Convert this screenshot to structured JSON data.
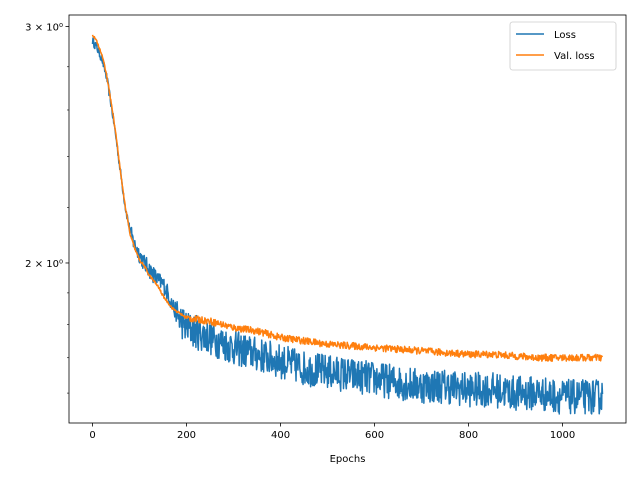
{
  "chart_data": {
    "type": "line",
    "title": "",
    "xlabel": "Epochs",
    "ylabel": "",
    "yscale": "log",
    "xlim": [
      -50,
      1135
    ],
    "ylim": [
      1.52,
      3.06
    ],
    "x_ticks": [
      0,
      200,
      400,
      600,
      800,
      1000
    ],
    "x_tick_labels": [
      "0",
      "200",
      "400",
      "600",
      "800",
      "1000"
    ],
    "y_ticks": [
      2,
      3
    ],
    "y_tick_labels": [
      "2 × 10⁰",
      "3 × 10⁰"
    ],
    "grid": false,
    "legend_position": "top-right",
    "series": [
      {
        "name": "Loss",
        "color": "#1f77b4",
        "noise": "high",
        "x": [
          0,
          10,
          20,
          30,
          40,
          50,
          60,
          70,
          80,
          90,
          100,
          110,
          120,
          130,
          140,
          150,
          160,
          170,
          180,
          190,
          200,
          250,
          300,
          350,
          400,
          450,
          500,
          550,
          600,
          650,
          700,
          750,
          800,
          850,
          900,
          950,
          1000,
          1050,
          1085
        ],
        "values": [
          2.93,
          2.89,
          2.84,
          2.75,
          2.62,
          2.48,
          2.33,
          2.2,
          2.11,
          2.06,
          2.03,
          2.0,
          1.98,
          1.96,
          1.94,
          1.93,
          1.9,
          1.86,
          1.83,
          1.81,
          1.79,
          1.76,
          1.73,
          1.71,
          1.69,
          1.67,
          1.66,
          1.65,
          1.64,
          1.63,
          1.62,
          1.62,
          1.61,
          1.61,
          1.6,
          1.6,
          1.59,
          1.59,
          1.59
        ]
      },
      {
        "name": "Val. loss",
        "color": "#ff7f0e",
        "noise": "low",
        "x": [
          0,
          10,
          20,
          30,
          40,
          50,
          60,
          70,
          80,
          90,
          100,
          110,
          120,
          130,
          140,
          150,
          160,
          170,
          180,
          190,
          200,
          250,
          300,
          350,
          400,
          450,
          500,
          550,
          600,
          650,
          700,
          750,
          800,
          850,
          900,
          950,
          1000,
          1050,
          1085
        ],
        "values": [
          2.96,
          2.92,
          2.86,
          2.76,
          2.63,
          2.49,
          2.33,
          2.2,
          2.1,
          2.05,
          2.01,
          1.99,
          1.96,
          1.94,
          1.92,
          1.89,
          1.87,
          1.85,
          1.84,
          1.83,
          1.82,
          1.81,
          1.79,
          1.78,
          1.76,
          1.75,
          1.74,
          1.735,
          1.73,
          1.725,
          1.72,
          1.715,
          1.71,
          1.71,
          1.705,
          1.7,
          1.7,
          1.7,
          1.7
        ]
      }
    ]
  }
}
